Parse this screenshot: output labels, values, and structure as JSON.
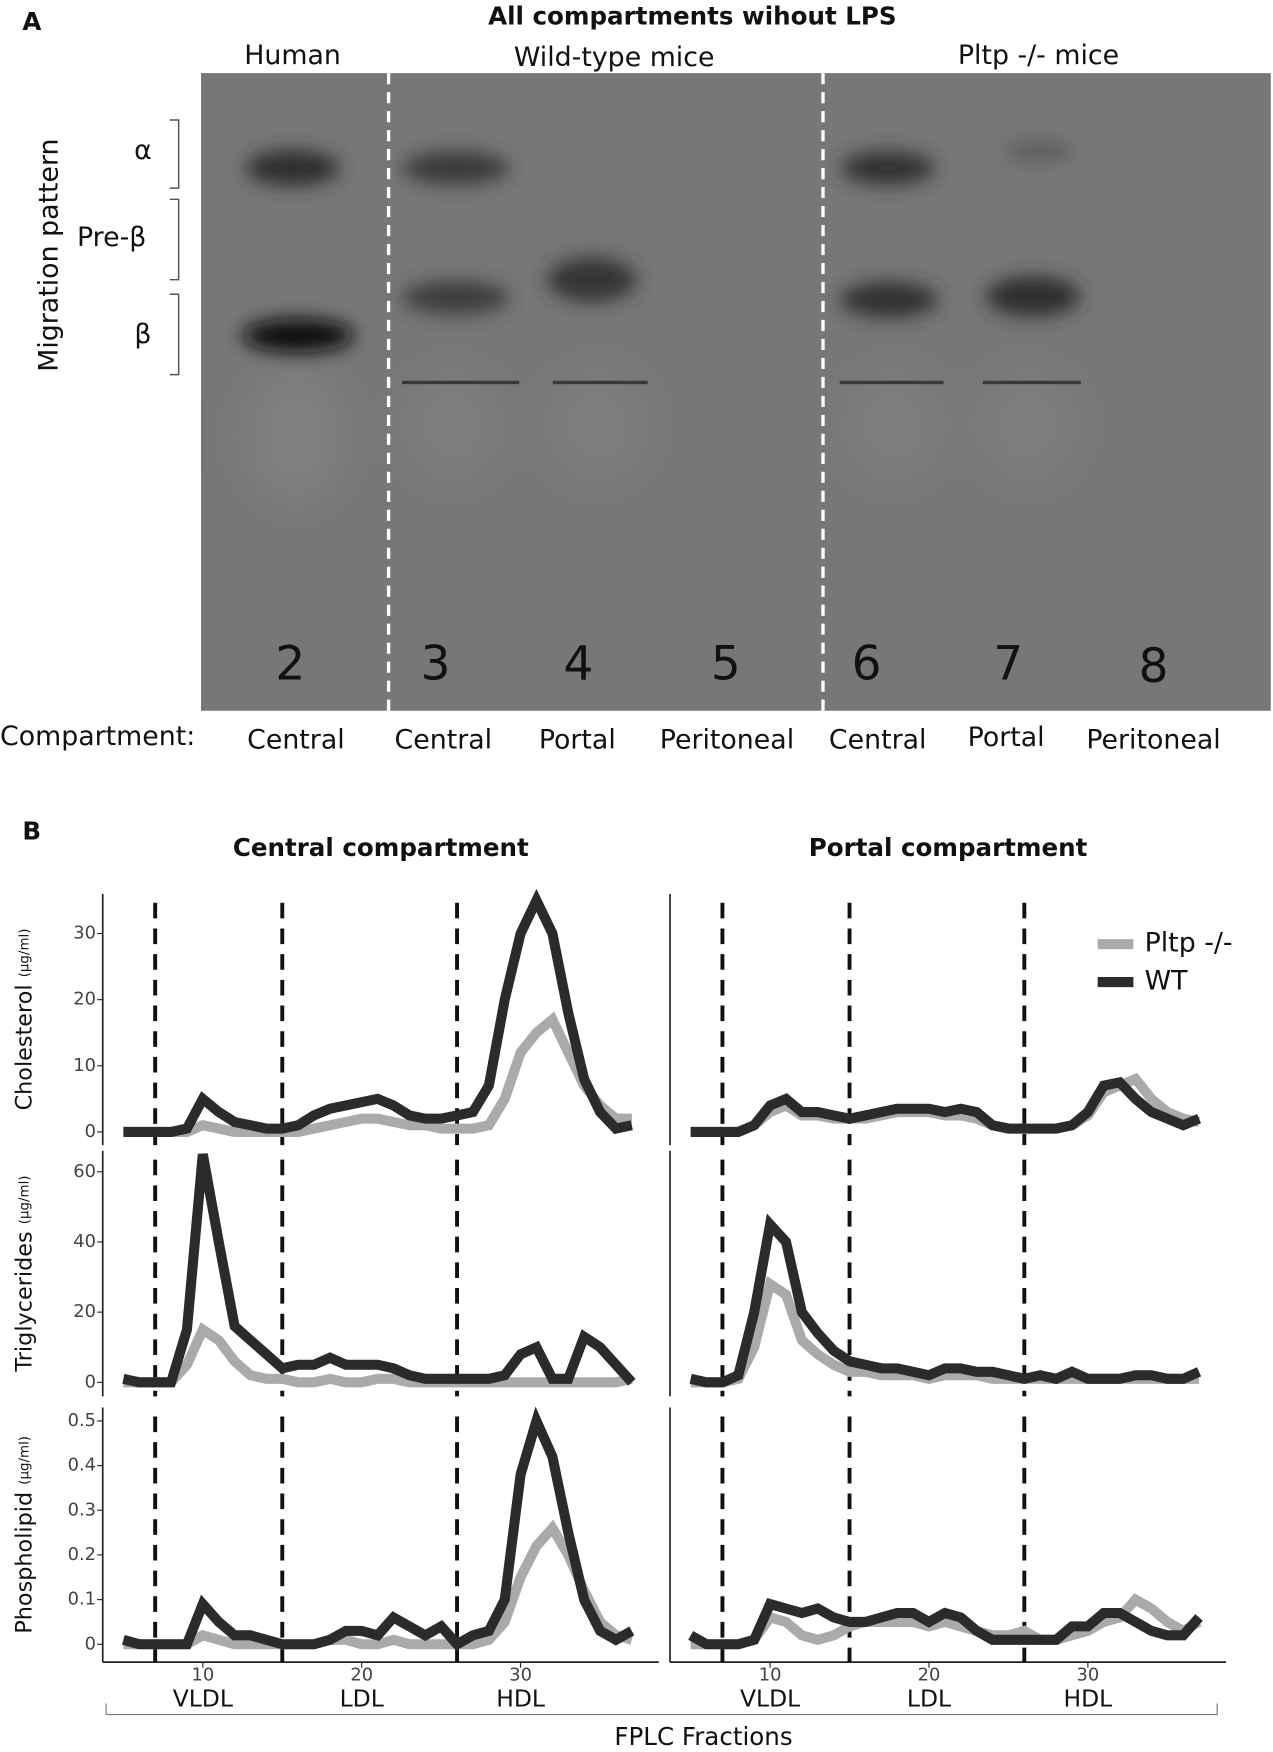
{
  "panel_a": {
    "label": "A",
    "title": "All compartments wihout LPS",
    "groups": [
      "Human",
      "Wild-type mice",
      "Pltp -/- mice"
    ],
    "ylabel": "Migration pattern",
    "bands": [
      "α",
      "Pre-β",
      "β"
    ],
    "lanes": [
      2,
      3,
      4,
      5,
      6,
      7,
      8
    ],
    "compartment_label": "Compartment:",
    "compartments": [
      "Central",
      "Central",
      "Portal",
      "Peritoneal",
      "Central",
      "Portal",
      "Peritoneal"
    ]
  },
  "panel_b": {
    "label": "B",
    "xlabel": "FPLC Fractions"
  },
  "chart_data": [
    {
      "type": "line",
      "title": "Central compartment",
      "ylabel": "Cholesterol",
      "yunit": "(µg/ml)",
      "x": [
        5,
        6,
        7,
        8,
        9,
        10,
        11,
        12,
        13,
        14,
        15,
        16,
        17,
        18,
        19,
        20,
        21,
        22,
        23,
        24,
        25,
        26,
        27,
        28,
        29,
        30,
        31,
        32,
        33,
        34,
        35,
        36,
        37
      ],
      "series": [
        {
          "name": "Pltp -/-",
          "color": "#aaaaaa",
          "values": [
            0,
            0,
            0,
            0,
            0,
            1,
            0.5,
            0,
            0,
            0,
            0,
            0,
            0.5,
            1,
            1.5,
            2,
            2,
            1.5,
            1,
            1,
            0.5,
            0.5,
            0.5,
            1,
            5,
            12,
            15,
            17,
            12,
            7,
            4,
            2,
            2
          ]
        },
        {
          "name": "WT",
          "color": "#2b2b2b",
          "values": [
            0,
            0,
            0,
            0,
            0.5,
            5,
            3,
            1.5,
            1,
            0.5,
            0.5,
            1,
            2.5,
            3.5,
            4,
            4.5,
            5,
            4,
            2.5,
            2,
            2,
            2.5,
            3,
            7,
            20,
            30,
            35,
            30,
            18,
            8,
            3,
            0.5,
            1
          ]
        }
      ],
      "xlim": [
        3.7,
        38.7
      ],
      "ylim": [
        -2,
        36
      ],
      "yticks": [
        0,
        10,
        20,
        30
      ],
      "vlines": [
        7,
        15,
        26
      ]
    },
    {
      "type": "line",
      "ylabel": "Triglycerides",
      "yunit": "(µg/ml)",
      "x": [
        5,
        6,
        7,
        8,
        9,
        10,
        11,
        12,
        13,
        14,
        15,
        16,
        17,
        18,
        19,
        20,
        21,
        22,
        23,
        24,
        25,
        26,
        27,
        28,
        29,
        30,
        31,
        32,
        33,
        34,
        35,
        36,
        37
      ],
      "series": [
        {
          "name": "Pltp -/-",
          "color": "#aaaaaa",
          "values": [
            0,
            0,
            0,
            0,
            5,
            15,
            12,
            6,
            2,
            1,
            1,
            0,
            0,
            1,
            0,
            0,
            1,
            1,
            0,
            0,
            0,
            0,
            0,
            0,
            0,
            0,
            0,
            0,
            0,
            0,
            0,
            0,
            1
          ]
        },
        {
          "name": "WT",
          "color": "#2b2b2b",
          "values": [
            1,
            0,
            0,
            0,
            15,
            65,
            40,
            16,
            12,
            8,
            4,
            5,
            5,
            7,
            5,
            5,
            5,
            4,
            2,
            1,
            1,
            1,
            1,
            1,
            2,
            8,
            10,
            1,
            1,
            13,
            10,
            5,
            0
          ]
        }
      ],
      "xlim": [
        3.7,
        38.7
      ],
      "ylim": [
        -4,
        66
      ],
      "yticks": [
        0,
        20,
        40,
        60
      ],
      "vlines": [
        7,
        15,
        26
      ]
    },
    {
      "type": "line",
      "ylabel": "Phospholipid",
      "yunit": "(µg/ml)",
      "x": [
        5,
        6,
        7,
        8,
        9,
        10,
        11,
        12,
        13,
        14,
        15,
        16,
        17,
        18,
        19,
        20,
        21,
        22,
        23,
        24,
        25,
        26,
        27,
        28,
        29,
        30,
        31,
        32,
        33,
        34,
        35,
        36,
        37
      ],
      "series": [
        {
          "name": "Pltp -/-",
          "color": "#aaaaaa",
          "values": [
            0,
            0,
            0,
            0,
            0,
            0.02,
            0.01,
            0,
            0,
            0,
            0,
            0,
            0,
            0.01,
            0.01,
            0,
            0,
            0.01,
            0,
            0,
            0,
            0,
            0,
            0.01,
            0.05,
            0.15,
            0.22,
            0.26,
            0.2,
            0.12,
            0.05,
            0.02,
            0.01
          ]
        },
        {
          "name": "WT",
          "color": "#2b2b2b",
          "values": [
            0.01,
            0,
            0,
            0,
            0,
            0.09,
            0.05,
            0.02,
            0.02,
            0.01,
            0,
            0,
            0,
            0.01,
            0.03,
            0.03,
            0.02,
            0.06,
            0.04,
            0.02,
            0.04,
            0,
            0.02,
            0.03,
            0.1,
            0.38,
            0.5,
            0.42,
            0.25,
            0.1,
            0.03,
            0.01,
            0.03
          ]
        }
      ],
      "xlim": [
        3.7,
        38.7
      ],
      "ylim": [
        -0.04,
        0.53
      ],
      "yticks": [
        0,
        0.1,
        0.2,
        0.3,
        0.4,
        0.5
      ],
      "xticks": [
        10,
        20,
        30
      ],
      "regions": [
        "VLDL",
        "LDL",
        "HDL"
      ],
      "vlines": [
        7,
        15,
        26
      ]
    },
    {
      "type": "line",
      "title": "Portal compartment",
      "legend": "upper right",
      "x": [
        5,
        6,
        7,
        8,
        9,
        10,
        11,
        12,
        13,
        14,
        15,
        16,
        17,
        18,
        19,
        20,
        21,
        22,
        23,
        24,
        25,
        26,
        27,
        28,
        29,
        30,
        31,
        32,
        33,
        34,
        35,
        36,
        37
      ],
      "series": [
        {
          "name": "Pltp -/-",
          "color": "#aaaaaa",
          "values": [
            0,
            0,
            0,
            0,
            1,
            3,
            4,
            2.5,
            2.5,
            2,
            2,
            2,
            2.5,
            3,
            3,
            3,
            2.5,
            2.5,
            2,
            1,
            0.5,
            0.5,
            0.5,
            0.5,
            1,
            2.5,
            6,
            7,
            8,
            5,
            3,
            2,
            1.5
          ]
        },
        {
          "name": "WT",
          "color": "#2b2b2b",
          "values": [
            0,
            0,
            0,
            0,
            1,
            4,
            5,
            3,
            3,
            2.5,
            2,
            2.5,
            3,
            3.5,
            3.5,
            3.5,
            3,
            3.5,
            3,
            1,
            0.5,
            0.5,
            0.5,
            0.5,
            1,
            3,
            7,
            7.5,
            5,
            3,
            2,
            1,
            2
          ]
        }
      ],
      "xlim": [
        3.7,
        38.7
      ],
      "ylim": [
        -2,
        36
      ],
      "vlines": [
        7,
        15,
        26
      ]
    },
    {
      "type": "line",
      "x": [
        5,
        6,
        7,
        8,
        9,
        10,
        11,
        12,
        13,
        14,
        15,
        16,
        17,
        18,
        19,
        20,
        21,
        22,
        23,
        24,
        25,
        26,
        27,
        28,
        29,
        30,
        31,
        32,
        33,
        34,
        35,
        36,
        37
      ],
      "series": [
        {
          "name": "Pltp -/-",
          "color": "#aaaaaa",
          "values": [
            0,
            0,
            0,
            1,
            10,
            28,
            25,
            12,
            8,
            5,
            3,
            3,
            2,
            2,
            2,
            1,
            2,
            2,
            2,
            1,
            1,
            1,
            1,
            1,
            1,
            1,
            1,
            1,
            1,
            1,
            1,
            1,
            1
          ]
        },
        {
          "name": "WT",
          "color": "#2b2b2b",
          "values": [
            1,
            0,
            0,
            2,
            20,
            45,
            40,
            20,
            14,
            9,
            6,
            5,
            4,
            4,
            3,
            2,
            4,
            4,
            3,
            3,
            2,
            1,
            2,
            1,
            3,
            1,
            1,
            1,
            2,
            2,
            1,
            1,
            3
          ]
        }
      ],
      "xlim": [
        3.7,
        38.7
      ],
      "ylim": [
        -4,
        66
      ],
      "vlines": [
        7,
        15,
        26
      ]
    },
    {
      "type": "line",
      "x": [
        5,
        6,
        7,
        8,
        9,
        10,
        11,
        12,
        13,
        14,
        15,
        16,
        17,
        18,
        19,
        20,
        21,
        22,
        23,
        24,
        25,
        26,
        27,
        28,
        29,
        30,
        31,
        32,
        33,
        34,
        35,
        36,
        37
      ],
      "series": [
        {
          "name": "Pltp -/-",
          "color": "#aaaaaa",
          "values": [
            0,
            0,
            0,
            0,
            0.01,
            0.06,
            0.05,
            0.02,
            0.01,
            0.02,
            0.04,
            0.05,
            0.05,
            0.05,
            0.05,
            0.04,
            0.05,
            0.04,
            0.03,
            0.02,
            0.02,
            0.03,
            0.01,
            0.01,
            0.02,
            0.03,
            0.05,
            0.06,
            0.1,
            0.08,
            0.05,
            0.03,
            0.05
          ]
        },
        {
          "name": "WT",
          "color": "#2b2b2b",
          "values": [
            0.02,
            0,
            0,
            0,
            0.01,
            0.09,
            0.08,
            0.07,
            0.08,
            0.06,
            0.05,
            0.05,
            0.06,
            0.07,
            0.07,
            0.05,
            0.07,
            0.06,
            0.03,
            0.01,
            0.01,
            0.01,
            0.01,
            0.01,
            0.04,
            0.04,
            0.07,
            0.07,
            0.05,
            0.03,
            0.02,
            0.02,
            0.06
          ]
        }
      ],
      "xlim": [
        3.7,
        38.7
      ],
      "ylim": [
        -0.04,
        0.53
      ],
      "xticks": [
        10,
        20,
        30
      ],
      "regions": [
        "VLDL",
        "LDL",
        "HDL"
      ],
      "vlines": [
        7,
        15,
        26
      ]
    }
  ]
}
